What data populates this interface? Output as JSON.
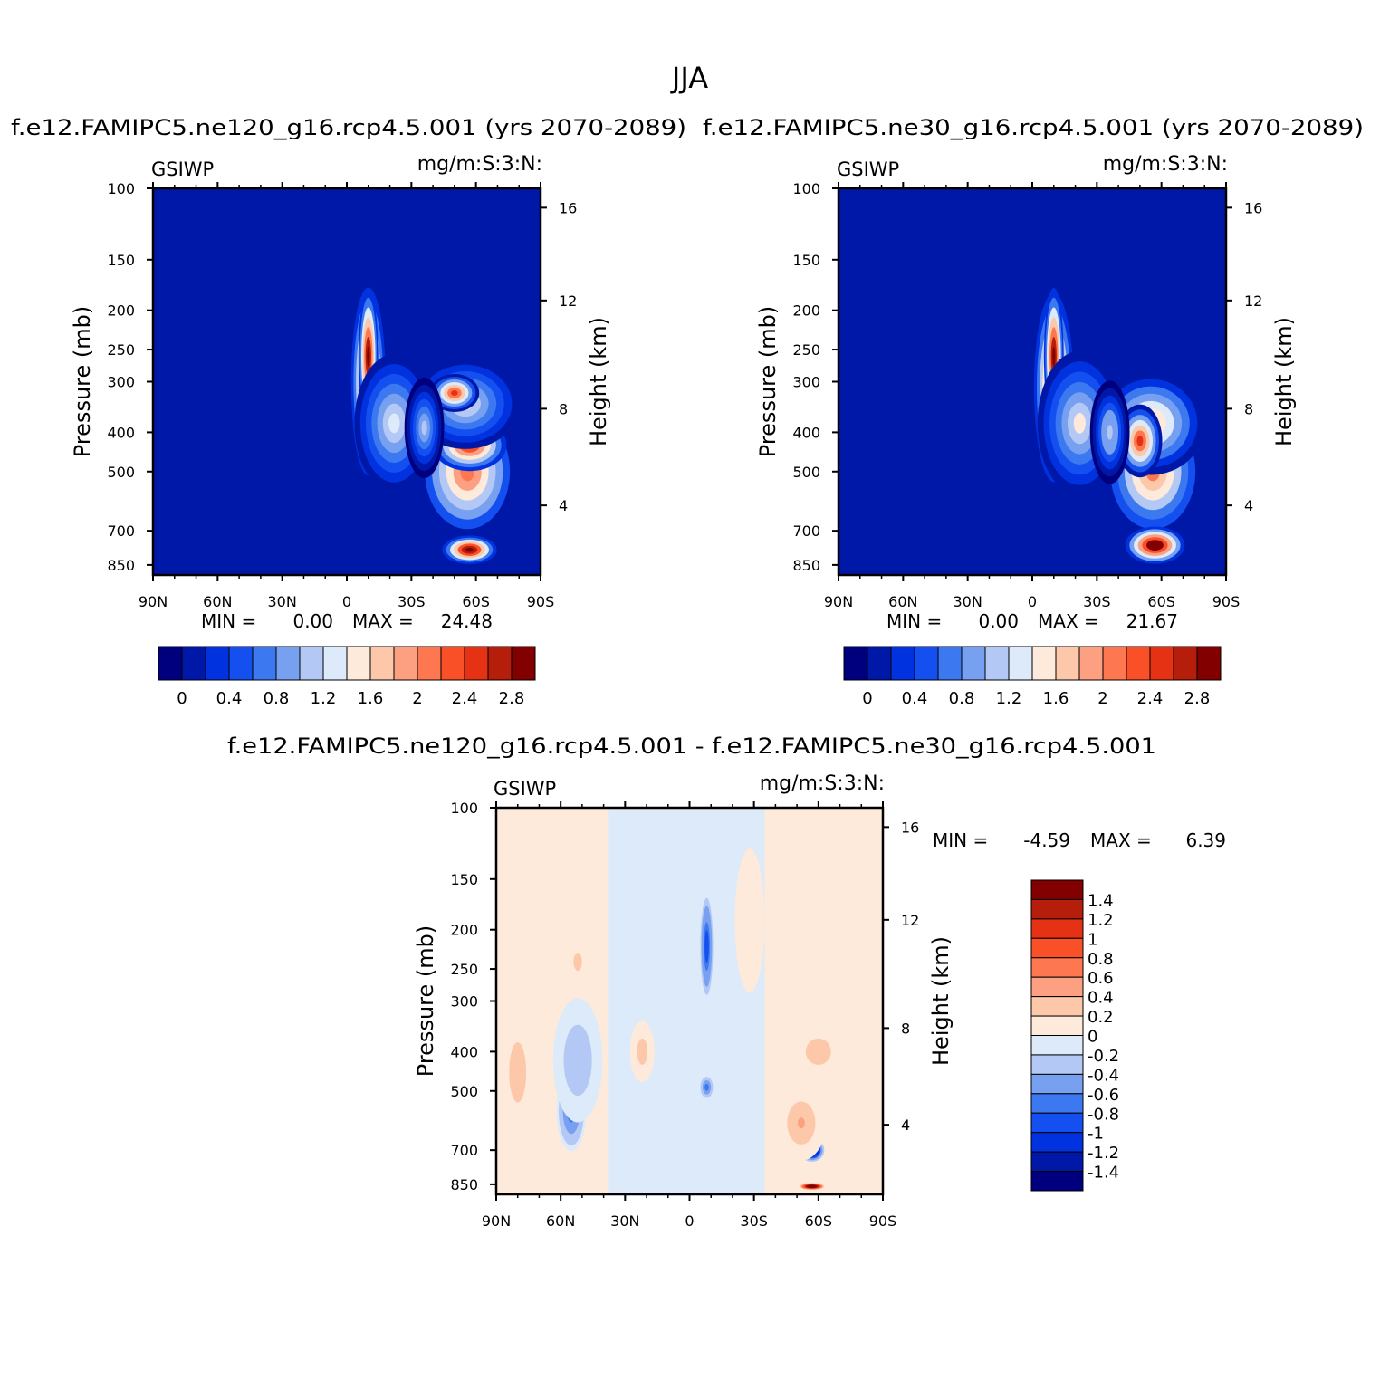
{
  "chart_data": {
    "type": "heatmap",
    "title": "JJA",
    "panels": [
      {
        "id": "ne120",
        "subtitle": "f.e12.FAMIPC5.ne120_g16.rcp4.5.001 (yrs 2070-2089)",
        "left_string": "GSIWP",
        "right_string": "mg/m:S:3:N:",
        "ylabel": "Pressure (mb)",
        "ylabel_right": "Height (km)",
        "xticks": [
          "90N",
          "60N",
          "30N",
          "0",
          "30S",
          "60S",
          "90S"
        ],
        "yticks": [
          "100",
          "150",
          "200",
          "250",
          "300",
          "400",
          "500",
          "700",
          "850"
        ],
        "yticks_right": [
          "16",
          "12",
          "8",
          "4"
        ],
        "stats": {
          "min_label": "MIN =",
          "min": "0.00",
          "max_label": "MAX =",
          "max": "24.48"
        },
        "levels": [
          "0",
          "0.4",
          "0.8",
          "1.2",
          "1.6",
          "2",
          "2.4",
          "2.8"
        ],
        "blobs": [
          {
            "lat": -56,
            "p": 500,
            "latw": 20,
            "pw": 320,
            "v": 2.4
          },
          {
            "lat": -57,
            "p": 430,
            "latw": 15,
            "pw": 110,
            "v": 2.9
          },
          {
            "lat": -57,
            "p": 780,
            "latw": 11,
            "pw": 110,
            "v": 3.4
          },
          {
            "lat": -10,
            "p": 300,
            "latw": 7,
            "pw": 260,
            "v": 2.9
          },
          {
            "lat": -10,
            "p": 260,
            "latw": 4,
            "pw": 170,
            "v": 3.3
          },
          {
            "lat": -22,
            "p": 380,
            "latw": 16,
            "pw": 250,
            "v": 1.5
          },
          {
            "lat": -55,
            "p": 340,
            "latw": 22,
            "pw": 150,
            "v": 1.6
          },
          {
            "lat": -50,
            "p": 320,
            "latw": 10,
            "pw": 60,
            "v": 2.7
          },
          {
            "lat": -36,
            "p": 390,
            "latw": 8,
            "pw": 190,
            "v": 1.3
          }
        ]
      },
      {
        "id": "ne30",
        "subtitle": "f.e12.FAMIPC5.ne30_g16.rcp4.5.001 (yrs 2070-2089)",
        "left_string": "GSIWP",
        "right_string": "mg/m:S:3:N:",
        "ylabel": "Pressure (mb)",
        "ylabel_right": "Height (km)",
        "xticks": [
          "90N",
          "60N",
          "30N",
          "0",
          "30S",
          "60S",
          "90S"
        ],
        "yticks": [
          "100",
          "150",
          "200",
          "250",
          "300",
          "400",
          "500",
          "700",
          "850"
        ],
        "yticks_right": [
          "16",
          "12",
          "8",
          "4"
        ],
        "stats": {
          "min_label": "MIN =",
          "min": "0.00",
          "max_label": "MAX =",
          "max": "21.67"
        },
        "levels": [
          "0",
          "0.4",
          "0.8",
          "1.2",
          "1.6",
          "2",
          "2.4",
          "2.8"
        ],
        "blobs": [
          {
            "lat": -56,
            "p": 500,
            "latw": 20,
            "pw": 320,
            "v": 2.3
          },
          {
            "lat": -57,
            "p": 430,
            "latw": 14,
            "pw": 90,
            "v": 2.6
          },
          {
            "lat": -57,
            "p": 760,
            "latw": 12,
            "pw": 140,
            "v": 3.5
          },
          {
            "lat": -10,
            "p": 310,
            "latw": 8,
            "pw": 270,
            "v": 3.0
          },
          {
            "lat": -10,
            "p": 260,
            "latw": 4,
            "pw": 170,
            "v": 3.3
          },
          {
            "lat": -22,
            "p": 380,
            "latw": 17,
            "pw": 260,
            "v": 1.6
          },
          {
            "lat": -55,
            "p": 380,
            "latw": 22,
            "pw": 190,
            "v": 2.0
          },
          {
            "lat": -50,
            "p": 420,
            "latw": 9,
            "pw": 150,
            "v": 2.7
          },
          {
            "lat": -36,
            "p": 400,
            "latw": 8,
            "pw": 200,
            "v": 1.4
          }
        ]
      },
      {
        "id": "diff",
        "subtitle": "f.e12.FAMIPC5.ne120_g16.rcp4.5.001 - f.e12.FAMIPC5.ne30_g16.rcp4.5.001",
        "left_string": "GSIWP",
        "right_string": "mg/m:S:3:N:",
        "ylabel": "Pressure (mb)",
        "ylabel_right": "Height (km)",
        "xticks": [
          "90N",
          "60N",
          "30N",
          "0",
          "30S",
          "60S",
          "90S"
        ],
        "yticks": [
          "100",
          "150",
          "200",
          "250",
          "300",
          "400",
          "500",
          "700",
          "850"
        ],
        "yticks_right": [
          "16",
          "12",
          "8",
          "4"
        ],
        "stats": {
          "min_label": "MIN =",
          "min": "-4.59",
          "max_label": "MAX =",
          "max": "6.39"
        },
        "levels": [
          "1.4",
          "1.2",
          "1",
          "0.8",
          "0.6",
          "0.4",
          "0.2",
          "0",
          "-0.2",
          "-0.4",
          "-0.6",
          "-0.8",
          "-1",
          "-1.2",
          "-1.4"
        ],
        "blobs": [
          {
            "lat": -57,
            "p": 700,
            "latw": 5,
            "pw": 80,
            "v": -2.0
          },
          {
            "lat": -57,
            "p": 860,
            "latw": 5,
            "pw": 30,
            "v": 2.2
          },
          {
            "lat": -52,
            "p": 600,
            "latw": 10,
            "pw": 220,
            "v": 0.4
          },
          {
            "lat": -60,
            "p": 400,
            "latw": 12,
            "pw": 120,
            "v": 0.3
          },
          {
            "lat": -8,
            "p": 220,
            "latw": 3,
            "pw": 120,
            "v": -1.0
          },
          {
            "lat": -8,
            "p": 490,
            "latw": 3,
            "pw": 60,
            "v": -0.8
          },
          {
            "lat": 55,
            "p": 560,
            "latw": 6,
            "pw": 220,
            "v": -0.8
          },
          {
            "lat": 52,
            "p": 420,
            "latw": 10,
            "pw": 250,
            "v": -0.4
          },
          {
            "lat": -28,
            "p": 190,
            "latw": 6,
            "pw": 130,
            "v": 0.15
          },
          {
            "lat": 52,
            "p": 240,
            "latw": 4,
            "pw": 50,
            "v": 0.3
          },
          {
            "lat": 80,
            "p": 450,
            "latw": 8,
            "pw": 300,
            "v": 0.35
          },
          {
            "lat": 22,
            "p": 400,
            "latw": 5,
            "pw": 120,
            "v": 0.3
          }
        ]
      }
    ],
    "colorbar_colors": [
      "#00007f",
      "#0018a8",
      "#0032e0",
      "#1450f0",
      "#3c78f0",
      "#78a0f0",
      "#b4c8f5",
      "#dceaf9",
      "#fdeadb",
      "#fdc8aa",
      "#fda082",
      "#fd7850",
      "#fa5028",
      "#e63214",
      "#b41e0a",
      "#820000"
    ]
  }
}
